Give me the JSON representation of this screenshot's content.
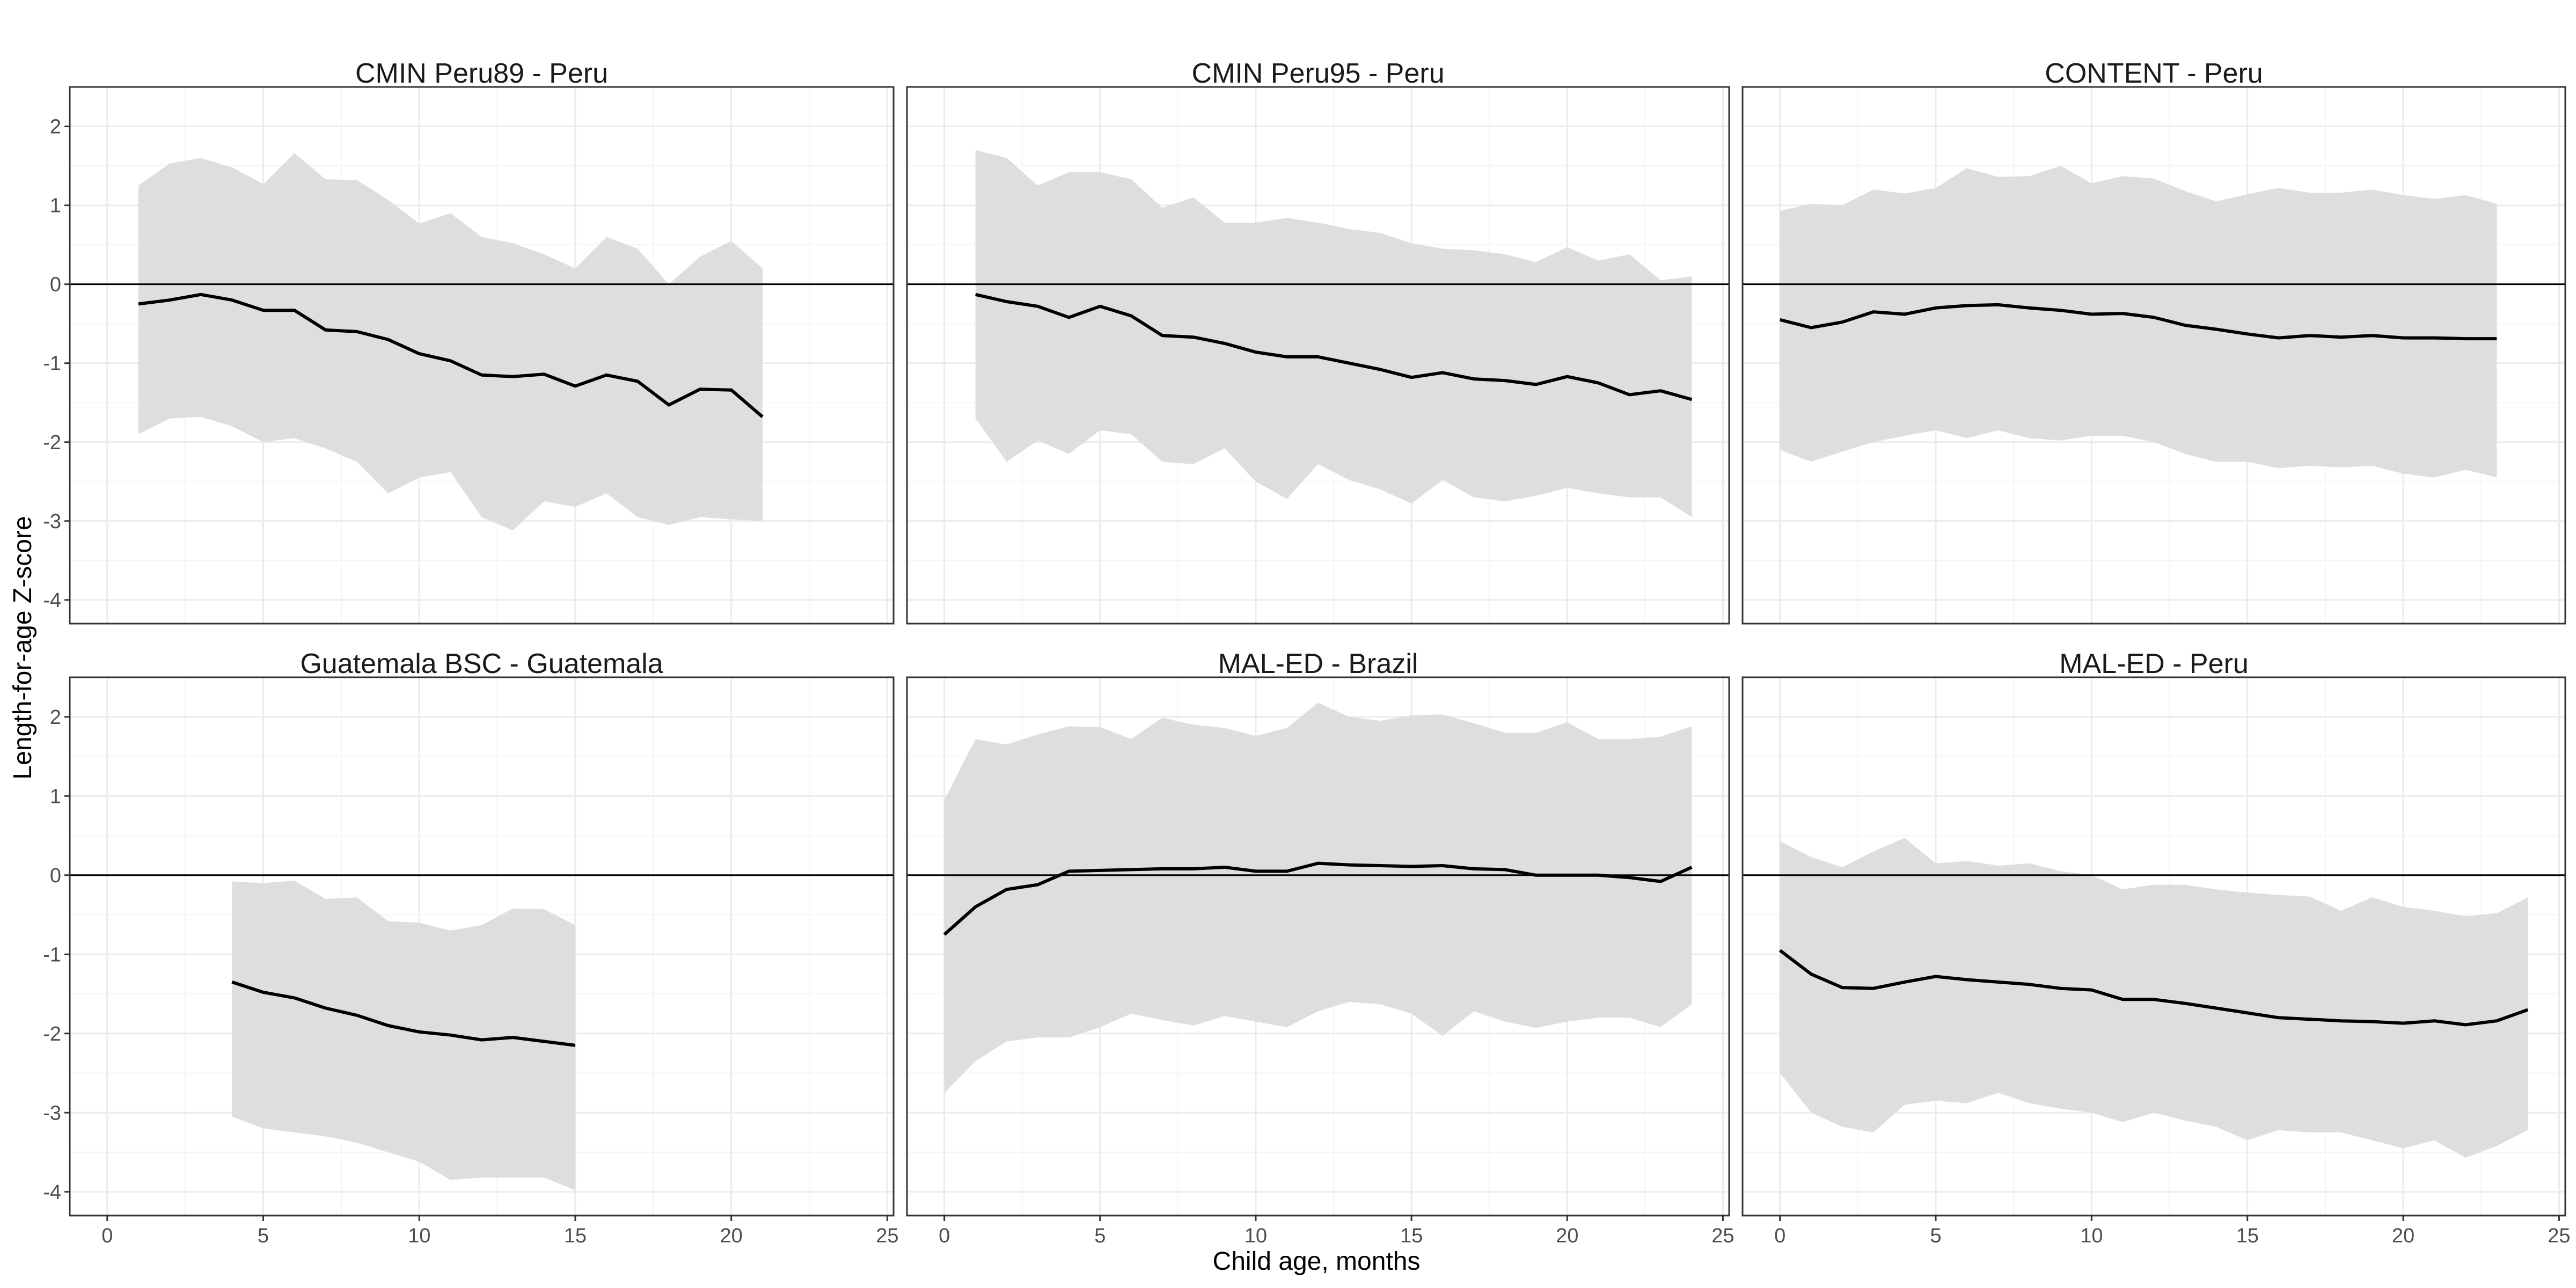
{
  "figure": {
    "xlabel": "Child age, months",
    "ylabel": "Length-for-age Z-score"
  },
  "colors": {
    "ribbon": "#dedede",
    "line": "#000000",
    "panel_border": "#333333",
    "grid_major": "#ebebeb",
    "grid_minor": "#f5f5f5",
    "reference_line": "#000000"
  },
  "chart_data": [
    {
      "type": "area",
      "title": "CMIN Peru89 - Peru",
      "xlim": [
        -1.2,
        25.2
      ],
      "ylim": [
        -4.3,
        2.5
      ],
      "x_ticks": [
        0,
        5,
        10,
        15,
        20,
        25
      ],
      "y_ticks": [
        -4,
        -3,
        -2,
        -1,
        0,
        1,
        2
      ],
      "reference_y": 0,
      "series": [
        {
          "x": [
            1,
            2,
            3,
            4,
            5,
            6,
            7,
            8,
            9,
            10,
            11,
            12,
            13,
            14,
            15,
            16,
            17,
            18,
            19,
            20,
            21
          ],
          "y": [
            -0.25,
            -0.2,
            -0.13,
            -0.2,
            -0.33,
            -0.33,
            -0.58,
            -0.6,
            -0.7,
            -0.88,
            -0.97,
            -1.15,
            -1.17,
            -1.14,
            -1.29,
            -1.15,
            -1.23,
            -1.53,
            -1.33,
            -1.34,
            -1.68
          ],
          "upper": [
            1.25,
            1.53,
            1.6,
            1.48,
            1.27,
            1.66,
            1.33,
            1.32,
            1.07,
            0.77,
            0.9,
            0.6,
            0.52,
            0.38,
            0.2,
            0.6,
            0.45,
            0.0,
            0.35,
            0.55,
            0.2
          ],
          "lower": [
            -1.9,
            -1.7,
            -1.68,
            -1.8,
            -2.0,
            -1.95,
            -2.08,
            -2.25,
            -2.65,
            -2.45,
            -2.38,
            -2.95,
            -3.12,
            -2.75,
            -2.82,
            -2.65,
            -2.95,
            -3.05,
            -2.95,
            -2.98,
            -3.0
          ]
        }
      ]
    },
    {
      "type": "area",
      "title": "CMIN Peru95 - Peru",
      "xlim": [
        -1.2,
        25.2
      ],
      "ylim": [
        -4.3,
        2.5
      ],
      "x_ticks": [
        0,
        5,
        10,
        15,
        20,
        25
      ],
      "y_ticks": [
        -4,
        -3,
        -2,
        -1,
        0,
        1,
        2
      ],
      "reference_y": 0,
      "series": [
        {
          "x": [
            1,
            2,
            3,
            4,
            5,
            6,
            7,
            8,
            9,
            10,
            11,
            12,
            13,
            14,
            15,
            16,
            17,
            18,
            19,
            20,
            21,
            22,
            23,
            24
          ],
          "y": [
            -0.13,
            -0.22,
            -0.28,
            -0.42,
            -0.28,
            -0.4,
            -0.65,
            -0.67,
            -0.75,
            -0.86,
            -0.92,
            -0.92,
            -1.0,
            -1.08,
            -1.18,
            -1.12,
            -1.2,
            -1.22,
            -1.27,
            -1.17,
            -1.25,
            -1.4,
            -1.35,
            -1.46
          ],
          "upper": [
            1.7,
            1.6,
            1.25,
            1.42,
            1.42,
            1.33,
            0.97,
            1.1,
            0.78,
            0.78,
            0.84,
            0.78,
            0.7,
            0.65,
            0.52,
            0.45,
            0.43,
            0.38,
            0.28,
            0.47,
            0.3,
            0.38,
            0.05,
            0.1
          ],
          "lower": [
            -1.7,
            -2.25,
            -1.98,
            -2.15,
            -1.85,
            -1.9,
            -2.25,
            -2.28,
            -2.08,
            -2.5,
            -2.72,
            -2.28,
            -2.48,
            -2.6,
            -2.78,
            -2.48,
            -2.7,
            -2.75,
            -2.68,
            -2.58,
            -2.65,
            -2.7,
            -2.7,
            -2.95
          ]
        }
      ]
    },
    {
      "type": "area",
      "title": "CONTENT - Peru",
      "xlim": [
        -1.2,
        25.2
      ],
      "ylim": [
        -4.3,
        2.5
      ],
      "x_ticks": [
        0,
        5,
        10,
        15,
        20,
        25
      ],
      "y_ticks": [
        -4,
        -3,
        -2,
        -1,
        0,
        1,
        2
      ],
      "reference_y": 0,
      "series": [
        {
          "x": [
            0,
            1,
            2,
            3,
            4,
            5,
            6,
            7,
            8,
            9,
            10,
            11,
            12,
            13,
            14,
            15,
            16,
            17,
            18,
            19,
            20,
            21,
            22,
            23
          ],
          "y": [
            -0.45,
            -0.55,
            -0.48,
            -0.35,
            -0.38,
            -0.3,
            -0.27,
            -0.26,
            -0.3,
            -0.33,
            -0.38,
            -0.37,
            -0.42,
            -0.52,
            -0.57,
            -0.63,
            -0.68,
            -0.65,
            -0.67,
            -0.65,
            -0.68,
            -0.68,
            -0.69,
            -0.69
          ],
          "upper": [
            0.93,
            1.02,
            1.0,
            1.2,
            1.15,
            1.22,
            1.47,
            1.36,
            1.37,
            1.5,
            1.28,
            1.37,
            1.34,
            1.18,
            1.05,
            1.14,
            1.22,
            1.16,
            1.16,
            1.2,
            1.13,
            1.08,
            1.13,
            1.02
          ],
          "lower": [
            -2.1,
            -2.25,
            -2.12,
            -2.0,
            -1.92,
            -1.85,
            -1.95,
            -1.85,
            -1.95,
            -1.98,
            -1.92,
            -1.92,
            -2.0,
            -2.15,
            -2.25,
            -2.25,
            -2.33,
            -2.3,
            -2.32,
            -2.3,
            -2.4,
            -2.45,
            -2.35,
            -2.45
          ]
        }
      ]
    },
    {
      "type": "area",
      "title": "Guatemala BSC - Guatemala",
      "xlim": [
        -1.2,
        25.2
      ],
      "ylim": [
        -4.3,
        2.5
      ],
      "x_ticks": [
        0,
        5,
        10,
        15,
        20,
        25
      ],
      "y_ticks": [
        -4,
        -3,
        -2,
        -1,
        0,
        1,
        2
      ],
      "reference_y": 0,
      "series": [
        {
          "x": [
            4,
            5,
            6,
            7,
            8,
            9,
            10,
            11,
            12,
            13,
            14,
            15
          ],
          "y": [
            -1.35,
            -1.48,
            -1.55,
            -1.68,
            -1.77,
            -1.9,
            -1.98,
            -2.02,
            -2.08,
            -2.05,
            -2.1,
            -2.15
          ],
          "upper": [
            -0.08,
            -0.1,
            -0.07,
            -0.3,
            -0.28,
            -0.58,
            -0.6,
            -0.7,
            -0.63,
            -0.42,
            -0.43,
            -0.63
          ],
          "lower": [
            -3.05,
            -3.2,
            -3.25,
            -3.3,
            -3.38,
            -3.5,
            -3.62,
            -3.85,
            -3.82,
            -3.82,
            -3.82,
            -3.98
          ]
        }
      ]
    },
    {
      "type": "area",
      "title": "MAL-ED - Brazil",
      "xlim": [
        -1.2,
        25.2
      ],
      "ylim": [
        -4.3,
        2.5
      ],
      "x_ticks": [
        0,
        5,
        10,
        15,
        20,
        25
      ],
      "y_ticks": [
        -4,
        -3,
        -2,
        -1,
        0,
        1,
        2
      ],
      "reference_y": 0,
      "series": [
        {
          "x": [
            0,
            1,
            2,
            3,
            4,
            5,
            6,
            7,
            8,
            9,
            10,
            11,
            12,
            13,
            14,
            15,
            16,
            17,
            18,
            19,
            20,
            21,
            22,
            23,
            24
          ],
          "y": [
            -0.75,
            -0.4,
            -0.18,
            -0.12,
            0.05,
            0.06,
            0.07,
            0.08,
            0.08,
            0.1,
            0.05,
            0.05,
            0.15,
            0.13,
            0.12,
            0.11,
            0.12,
            0.08,
            0.07,
            0.0,
            0.0,
            0.0,
            -0.03,
            -0.08,
            0.1
          ],
          "upper": [
            0.95,
            1.72,
            1.65,
            1.78,
            1.88,
            1.87,
            1.72,
            1.99,
            1.9,
            1.86,
            1.76,
            1.86,
            2.18,
            2.0,
            1.95,
            2.02,
            2.03,
            1.92,
            1.8,
            1.8,
            1.93,
            1.72,
            1.72,
            1.75,
            1.88
          ],
          "lower": [
            -2.75,
            -2.35,
            -2.1,
            -2.05,
            -2.05,
            -1.92,
            -1.75,
            -1.83,
            -1.9,
            -1.78,
            -1.85,
            -1.92,
            -1.72,
            -1.6,
            -1.63,
            -1.75,
            -2.03,
            -1.72,
            -1.85,
            -1.93,
            -1.85,
            -1.8,
            -1.8,
            -1.92,
            -1.63
          ]
        }
      ]
    },
    {
      "type": "area",
      "title": "MAL-ED - Peru",
      "xlim": [
        -1.2,
        25.2
      ],
      "ylim": [
        -4.3,
        2.5
      ],
      "x_ticks": [
        0,
        5,
        10,
        15,
        20,
        25
      ],
      "y_ticks": [
        -4,
        -3,
        -2,
        -1,
        0,
        1,
        2
      ],
      "reference_y": 0,
      "series": [
        {
          "x": [
            0,
            1,
            2,
            3,
            4,
            5,
            6,
            7,
            8,
            9,
            10,
            11,
            12,
            13,
            14,
            15,
            16,
            17,
            18,
            19,
            20,
            21,
            22,
            23,
            24
          ],
          "y": [
            -0.95,
            -1.25,
            -1.42,
            -1.43,
            -1.35,
            -1.28,
            -1.32,
            -1.35,
            -1.38,
            -1.43,
            -1.45,
            -1.57,
            -1.57,
            -1.62,
            -1.68,
            -1.74,
            -1.8,
            -1.82,
            -1.84,
            -1.85,
            -1.87,
            -1.84,
            -1.89,
            -1.84,
            -1.7
          ],
          "upper": [
            0.43,
            0.23,
            0.1,
            0.3,
            0.47,
            0.15,
            0.18,
            0.12,
            0.15,
            0.05,
            0.0,
            -0.18,
            -0.12,
            -0.12,
            -0.18,
            -0.22,
            -0.25,
            -0.27,
            -0.45,
            -0.28,
            -0.4,
            -0.45,
            -0.52,
            -0.48,
            -0.28
          ],
          "lower": [
            -2.5,
            -3.0,
            -3.18,
            -3.25,
            -2.9,
            -2.85,
            -2.88,
            -2.75,
            -2.88,
            -2.95,
            -3.0,
            -3.12,
            -3.0,
            -3.1,
            -3.18,
            -3.35,
            -3.22,
            -3.25,
            -3.25,
            -3.35,
            -3.45,
            -3.35,
            -3.57,
            -3.42,
            -3.22
          ]
        }
      ]
    }
  ]
}
